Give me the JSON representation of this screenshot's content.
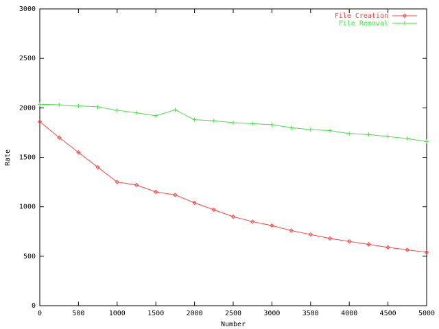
{
  "chart_data": {
    "type": "line",
    "title": "",
    "xlabel": "Number",
    "ylabel": "Rate",
    "xlim": [
      0,
      5000
    ],
    "ylim": [
      0,
      3000
    ],
    "xticks": [
      0,
      500,
      1000,
      1500,
      2000,
      2500,
      3000,
      3500,
      4000,
      4500,
      5000
    ],
    "yticks": [
      0,
      500,
      1000,
      1500,
      2000,
      2500,
      3000
    ],
    "grid": false,
    "legend_position": "top-right",
    "x": [
      0,
      250,
      500,
      750,
      1000,
      1250,
      1500,
      1750,
      2000,
      2250,
      2500,
      2750,
      3000,
      3250,
      3500,
      3750,
      4000,
      4250,
      4500,
      4750,
      5000
    ],
    "series": [
      {
        "name": "File Creation",
        "color": "#ff4040",
        "marker": "diamond",
        "values": [
          1860,
          1700,
          1550,
          1400,
          1250,
          1220,
          1150,
          1120,
          1040,
          970,
          900,
          850,
          810,
          760,
          720,
          680,
          650,
          620,
          590,
          565,
          540
        ]
      },
      {
        "name": "File Removal",
        "color": "#40e040",
        "marker": "plus",
        "values": [
          2035,
          2030,
          2020,
          2010,
          1975,
          1950,
          1920,
          1980,
          1880,
          1870,
          1850,
          1840,
          1830,
          1800,
          1780,
          1770,
          1740,
          1730,
          1710,
          1690,
          1660
        ]
      }
    ]
  }
}
